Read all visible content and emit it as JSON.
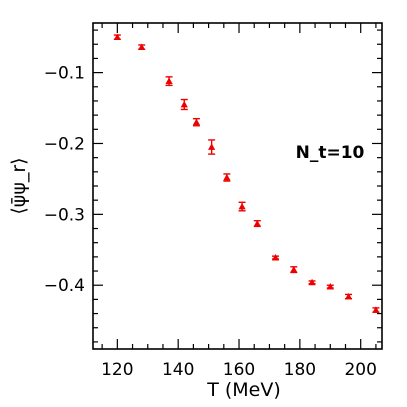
{
  "chart_data": {
    "type": "scatter",
    "xlabel": "T (MeV)",
    "ylabel": "⟨ψ̄ψ_r⟩",
    "annotation": "N_t=10",
    "xlim": [
      112,
      207
    ],
    "ylim": [
      -0.49,
      -0.03
    ],
    "x_ticks": [
      120,
      140,
      160,
      180,
      200
    ],
    "x_tick_labels": [
      "120",
      "140",
      "160",
      "180",
      "200"
    ],
    "y_ticks": [
      -0.1,
      -0.2,
      -0.3,
      -0.4
    ],
    "y_tick_labels": [
      "−0.1",
      "−0.2",
      "−0.3",
      "−0.4"
    ],
    "x_minor_step": 5,
    "y_minor_step": 0.02,
    "marker_color": "#ee0000",
    "series": [
      {
        "points": [
          {
            "x": 120,
            "y": -0.05,
            "err": 0.003
          },
          {
            "x": 128,
            "y": -0.064,
            "err": 0.003
          },
          {
            "x": 137,
            "y": -0.112,
            "err": 0.006
          },
          {
            "x": 142,
            "y": -0.145,
            "err": 0.007
          },
          {
            "x": 146,
            "y": -0.17,
            "err": 0.005
          },
          {
            "x": 151,
            "y": -0.205,
            "err": 0.01
          },
          {
            "x": 156,
            "y": -0.248,
            "err": 0.005
          },
          {
            "x": 161,
            "y": -0.289,
            "err": 0.006
          },
          {
            "x": 166,
            "y": -0.313,
            "err": 0.004
          },
          {
            "x": 172,
            "y": -0.361,
            "err": 0.002
          },
          {
            "x": 178,
            "y": -0.378,
            "err": 0.004
          },
          {
            "x": 184,
            "y": -0.396,
            "err": 0.002
          },
          {
            "x": 190,
            "y": -0.402,
            "err": 0.002
          },
          {
            "x": 196,
            "y": -0.416,
            "err": 0.003
          },
          {
            "x": 205,
            "y": -0.435,
            "err": 0.003
          }
        ]
      }
    ]
  }
}
